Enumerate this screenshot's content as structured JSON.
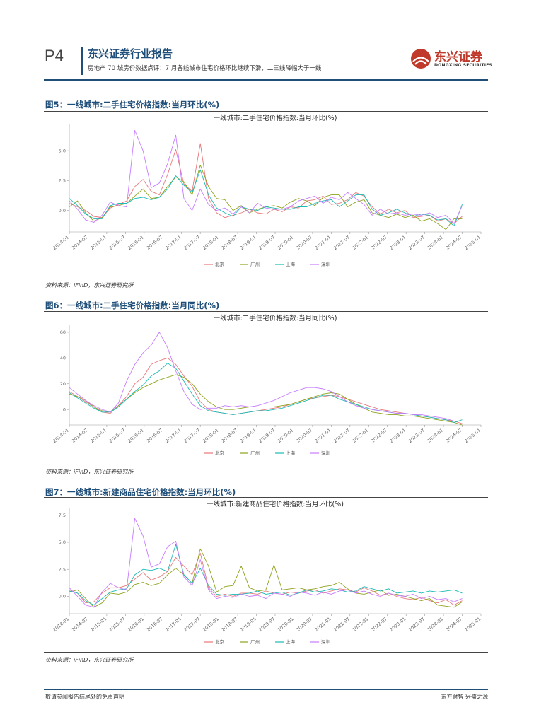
{
  "header": {
    "page_number": "P4",
    "report_type": "东兴证券行业报告",
    "subtitle": "房地产 70 城房价数据点评：7 月各线城市住宅价格环比继续下滑，二三线降幅大于一线",
    "logo_cn": "东兴证券",
    "logo_en": "DONGXING SECURITIES"
  },
  "figures": [
    {
      "label": "图5：一线城市:二手住宅价格指数:当月环比(%)",
      "source": "资料来源：iFinD，东兴证券研究所"
    },
    {
      "label": "图6：一线城市:二手住宅价格指数:当月同比(%)",
      "source": "资料来源：iFinD，东兴证券研究所"
    },
    {
      "label": "图7：一线城市:新建商品住宅价格指数:当月环比(%)",
      "source": "资料来源：iFinD，东兴证券研究所"
    }
  ],
  "colors": {
    "北京": "#e8777a",
    "广州": "#8fa31e",
    "上海": "#1bbab5",
    "深圳": "#c77cff"
  },
  "chart_data": [
    {
      "type": "line",
      "title": "一线城市:二手住宅价格指数:当月环比(%)",
      "x_ticks": [
        "2014-01",
        "2014-07",
        "2015-01",
        "2015-07",
        "2016-01",
        "2016-07",
        "2017-01",
        "2017-07",
        "2018-01",
        "2018-07",
        "2019-01",
        "2019-07",
        "2020-01",
        "2020-07",
        "2021-01",
        "2021-07",
        "2022-01",
        "2022-07",
        "2023-01",
        "2023-07",
        "2024-01",
        "2024-07",
        "2025-01"
      ],
      "x_range": [
        "2014-01",
        "2025-01"
      ],
      "y_ticks": [
        "0.0",
        "2.5",
        "5.0"
      ],
      "ylim": [
        -1.8,
        7.2
      ],
      "legend_position": "bottom",
      "series": [
        {
          "name": "北京",
          "values": [
            0.6,
            0.3,
            0.0,
            -0.5,
            -0.6,
            0.2,
            0.5,
            0.8,
            2.0,
            2.6,
            1.6,
            1.3,
            3.0,
            5.1,
            2.2,
            1.6,
            5.6,
            1.0,
            -0.2,
            -0.6,
            -0.4,
            -0.2,
            0.1,
            -0.2,
            -0.3,
            0.1,
            -0.1,
            0.3,
            0.2,
            0.8,
            0.9,
            1.2,
            0.5,
            0.6,
            0.9,
            1.5,
            1.2,
            0.3,
            -0.3,
            0.1,
            -0.2,
            0.0,
            -0.6,
            -0.5,
            -0.4,
            -0.9,
            -0.7,
            -1.1,
            -0.5
          ]
        },
        {
          "name": "广州",
          "values": [
            0.3,
            0.8,
            -0.2,
            -0.9,
            -0.6,
            0.3,
            0.4,
            0.6,
            1.2,
            1.8,
            1.0,
            1.1,
            2.0,
            2.8,
            2.4,
            1.3,
            3.8,
            2.0,
            1.0,
            0.9,
            0.0,
            0.4,
            -0.2,
            0.1,
            0.3,
            0.4,
            0.2,
            0.7,
            1.0,
            0.8,
            0.4,
            1.1,
            1.3,
            1.3,
            0.3,
            0.7,
            0.9,
            -0.2,
            -0.4,
            -0.6,
            -0.3,
            -0.6,
            -0.4,
            -0.9,
            -0.7,
            -1.1,
            -1.6,
            -0.7,
            -0.7
          ]
        },
        {
          "name": "上海",
          "values": [
            1.0,
            0.4,
            -0.3,
            -0.7,
            -0.7,
            0.4,
            0.6,
            0.6,
            1.0,
            1.1,
            0.9,
            1.1,
            1.8,
            2.9,
            2.1,
            1.5,
            3.4,
            1.3,
            0.2,
            -0.2,
            -0.5,
            0.3,
            0.1,
            0.0,
            0.3,
            0.2,
            0.1,
            0.1,
            0.3,
            0.3,
            0.6,
            0.8,
            0.9,
            0.3,
            0.8,
            1.3,
            1.3,
            0.1,
            -0.4,
            -0.2,
            0.1,
            -0.2,
            -0.5,
            -0.3,
            -0.4,
            -0.8,
            -0.7,
            -1.3,
            0.5
          ]
        },
        {
          "name": "深圳",
          "values": [
            0.8,
            0.1,
            -0.8,
            -1.0,
            -0.4,
            0.7,
            0.4,
            0.3,
            6.7,
            5.0,
            1.9,
            2.3,
            3.9,
            6.3,
            1.0,
            0.0,
            1.8,
            0.5,
            0.0,
            0.2,
            -0.3,
            0.3,
            -0.2,
            0.6,
            0.2,
            0.1,
            0.1,
            0.3,
            0.8,
            1.0,
            1.2,
            0.6,
            1.1,
            0.9,
            1.5,
            1.0,
            0.5,
            -0.4,
            0.1,
            -0.3,
            -0.2,
            -0.4,
            -0.3,
            -0.4,
            -0.2,
            -0.6,
            -0.4,
            -1.1,
            0.4
          ]
        }
      ]
    },
    {
      "type": "line",
      "title": "一线城市:二手住宅价格指数:当月同比(%)",
      "x_ticks": [
        "2014-01",
        "2014-07",
        "2015-01",
        "2015-07",
        "2016-01",
        "2016-07",
        "2017-01",
        "2017-07",
        "2018-01",
        "2018-07",
        "2019-01",
        "2019-07",
        "2020-01",
        "2020-07",
        "2021-01",
        "2021-07",
        "2022-01",
        "2022-07",
        "2023-01",
        "2023-07",
        "2024-01",
        "2024-07",
        "2025-01"
      ],
      "x_range": [
        "2014-01",
        "2025-01"
      ],
      "y_ticks": [
        "0",
        "20",
        "40",
        "60"
      ],
      "ylim": [
        -12,
        66
      ],
      "legend_position": "bottom",
      "series": [
        {
          "name": "北京",
          "values": [
            14,
            10,
            6,
            2,
            -2,
            -3,
            3,
            10,
            20,
            25,
            35,
            38,
            40,
            35,
            26,
            18,
            6,
            0,
            -2,
            -3,
            -4,
            -3,
            -2,
            -1,
            0,
            1,
            2,
            4,
            6,
            8,
            9,
            10,
            11,
            10,
            8,
            6,
            4,
            2,
            0,
            -1,
            -2,
            -3,
            -4,
            -5,
            -6,
            -7,
            -8,
            -9,
            -11
          ]
        },
        {
          "name": "广州",
          "values": [
            12,
            10,
            7,
            2,
            -1,
            -2,
            3,
            8,
            13,
            17,
            20,
            23,
            25,
            27,
            25,
            20,
            12,
            6,
            2,
            0,
            0,
            1,
            2,
            2,
            2,
            2,
            3,
            4,
            6,
            8,
            10,
            12,
            13,
            12,
            8,
            4,
            1,
            -2,
            -3,
            -4,
            -4,
            -5,
            -5,
            -6,
            -7,
            -8,
            -9,
            -10,
            -12
          ]
        },
        {
          "name": "上海",
          "values": [
            13,
            9,
            5,
            1,
            -2,
            -2,
            2,
            8,
            14,
            19,
            26,
            30,
            36,
            32,
            22,
            12,
            3,
            -1,
            -2,
            -3,
            -4,
            -3,
            -2,
            -1,
            -1,
            0,
            1,
            3,
            5,
            7,
            9,
            11,
            11,
            8,
            6,
            4,
            2,
            0,
            -1,
            -2,
            -3,
            -3,
            -4,
            -5,
            -6,
            -7,
            -8,
            -10,
            -8
          ]
        },
        {
          "name": "深圳",
          "values": [
            17,
            12,
            7,
            3,
            0,
            -2,
            5,
            22,
            35,
            44,
            50,
            60,
            48,
            30,
            14,
            4,
            0,
            1,
            1,
            3,
            2,
            3,
            2,
            3,
            5,
            7,
            10,
            13,
            15,
            17,
            17,
            16,
            14,
            10,
            6,
            3,
            1,
            0,
            -1,
            -2,
            -3,
            -3,
            -4,
            -4,
            -5,
            -6,
            -7,
            -9,
            -9
          ]
        }
      ]
    },
    {
      "type": "line",
      "title": "一线城市:新建商品住宅价格指数:当月环比(%)",
      "x_ticks": [
        "2014-01",
        "2014-07",
        "2015-01",
        "2015-07",
        "2016-01",
        "2016-07",
        "2017-01",
        "2017-07",
        "2018-01",
        "2018-07",
        "2019-01",
        "2019-07",
        "2020-01",
        "2020-07",
        "2021-01",
        "2021-07",
        "2022-01",
        "2022-07",
        "2023-01",
        "2023-07",
        "2024-01",
        "2024-07",
        "2025-01"
      ],
      "x_range": [
        "2014-01",
        "2025-01"
      ],
      "y_ticks": [
        "0.0",
        "2.5",
        "5.0",
        "7.5"
      ],
      "ylim": [
        -1.6,
        8.2
      ],
      "legend_position": "bottom",
      "series": [
        {
          "name": "北京",
          "values": [
            0.6,
            0.3,
            -0.6,
            -0.5,
            0.3,
            0.8,
            0.8,
            1.0,
            1.6,
            2.2,
            1.5,
            1.8,
            2.3,
            3.6,
            2.8,
            2.0,
            4.0,
            0.8,
            0.0,
            0.2,
            0.0,
            0.3,
            0.3,
            0.2,
            0.5,
            0.3,
            0.2,
            0.4,
            0.3,
            0.5,
            0.6,
            0.3,
            0.5,
            0.7,
            0.6,
            0.4,
            0.8,
            0.5,
            0.1,
            0.3,
            0.0,
            -0.2,
            -0.3,
            -0.1,
            -0.4,
            -0.6,
            -0.3,
            -0.8,
            -0.4
          ]
        },
        {
          "name": "广州",
          "values": [
            0.4,
            0.6,
            -0.2,
            -1.0,
            -0.6,
            0.3,
            0.2,
            0.4,
            1.1,
            1.3,
            1.0,
            1.2,
            2.0,
            2.6,
            2.0,
            1.2,
            4.4,
            2.8,
            0.4,
            0.9,
            1.0,
            2.8,
            0.8,
            0.5,
            0.6,
            2.9,
            0.6,
            0.7,
            0.8,
            0.6,
            0.7,
            0.9,
            1.0,
            1.3,
            0.7,
            0.3,
            0.2,
            0.4,
            0.6,
            0.1,
            0.2,
            0.0,
            -0.2,
            -0.4,
            -0.2,
            -0.8,
            -0.9,
            -1.0,
            -0.5
          ]
        },
        {
          "name": "上海",
          "values": [
            0.5,
            0.3,
            -0.4,
            -0.8,
            -0.2,
            0.4,
            0.6,
            0.7,
            2.0,
            2.5,
            2.4,
            2.6,
            2.3,
            4.8,
            2.0,
            1.2,
            2.6,
            1.0,
            0.2,
            0.1,
            0.2,
            0.2,
            0.3,
            0.5,
            0.2,
            0.3,
            0.4,
            0.1,
            0.3,
            0.6,
            0.4,
            0.5,
            0.7,
            0.6,
            0.4,
            0.5,
            0.9,
            0.7,
            0.5,
            0.7,
            0.3,
            0.4,
            0.5,
            0.3,
            0.5,
            0.4,
            0.5,
            0.6,
            0.3
          ]
        },
        {
          "name": "深圳",
          "values": [
            0.8,
            0.0,
            -0.8,
            -1.0,
            0.4,
            1.2,
            0.8,
            0.6,
            7.2,
            5.6,
            2.7,
            3.0,
            4.6,
            5.1,
            1.8,
            1.0,
            3.4,
            0.6,
            -0.2,
            0.0,
            -0.1,
            0.2,
            0.0,
            0.1,
            -0.2,
            0.3,
            0.2,
            0.0,
            0.4,
            0.3,
            0.1,
            0.4,
            0.2,
            0.5,
            0.6,
            0.3,
            0.5,
            0.2,
            0.0,
            0.3,
            0.1,
            0.0,
            0.2,
            -0.2,
            0.0,
            -0.3,
            -0.2,
            -0.5,
            -0.2
          ]
        }
      ]
    }
  ],
  "footer": {
    "left": "敬请参阅报告结尾处的免责声明",
    "right": "东方财智  兴盛之源"
  }
}
